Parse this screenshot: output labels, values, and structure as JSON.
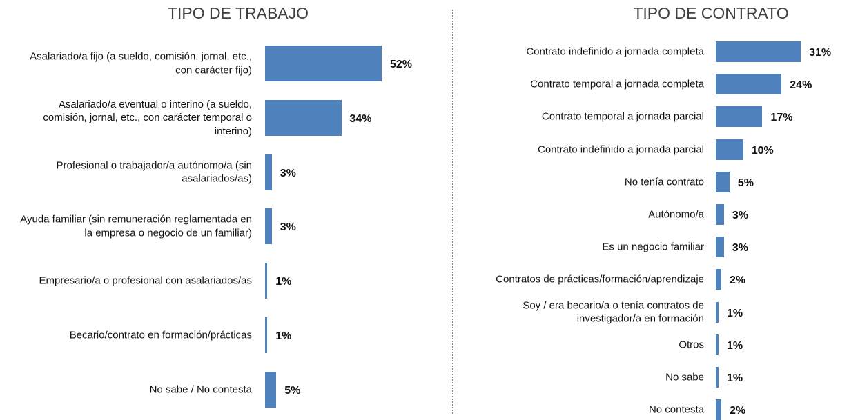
{
  "chart_data": [
    {
      "type": "bar",
      "orientation": "horizontal",
      "title": "TIPO DE TRABAJO",
      "color": "#4f81bd",
      "categories": [
        "Asalariado/a fijo (a sueldo, comisión, jornal, etc., con carácter fijo)",
        "Asalariado/a eventual o interino (a sueldo, comisión, jornal, etc., con carácter temporal o interino)",
        "Profesional o trabajador/a autónomo/a (sin asalariados/as)",
        "Ayuda familiar (sin remuneración reglamentada en la empresa o negocio de un familiar)",
        "Empresario/a o profesional con asalariados/as",
        "Becario/contrato en formación/prácticas",
        "No sabe / No contesta"
      ],
      "values": [
        52,
        34,
        3,
        3,
        1,
        1,
        5
      ],
      "value_labels": [
        "52%",
        "34%",
        "3%",
        "3%",
        "1%",
        "1%",
        "5%"
      ]
    },
    {
      "type": "bar",
      "orientation": "horizontal",
      "title": "TIPO DE CONTRATO",
      "color": "#4f81bd",
      "categories": [
        "Contrato indefinido a jornada completa",
        "Contrato temporal a jornada completa",
        "Contrato temporal a jornada parcial",
        "Contrato indefinido a jornada parcial",
        "No tenía contrato",
        "Autónomo/a",
        "Es un negocio familiar",
        "Contratos de prácticas/formación/aprendizaje",
        "Soy / era becario/a o tenía contratos de investigador/a en formación",
        "Otros",
        "No sabe",
        "No contesta"
      ],
      "values": [
        31,
        24,
        17,
        10,
        5,
        3,
        3,
        2,
        1,
        1,
        1,
        2
      ],
      "value_labels": [
        "31%",
        "24%",
        "17%",
        "10%",
        "5%",
        "3%",
        "3%",
        "2%",
        "1%",
        "1%",
        "1%",
        "2%"
      ]
    }
  ]
}
